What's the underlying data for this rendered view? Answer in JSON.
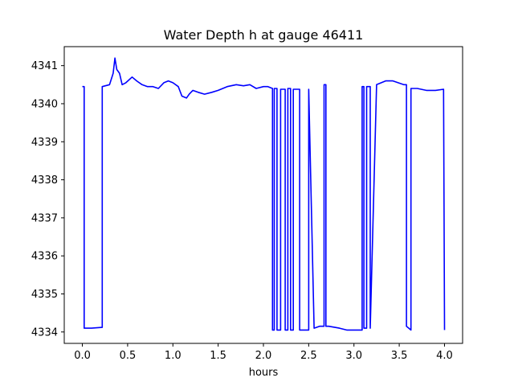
{
  "chart_data": {
    "type": "line",
    "title": "Water Depth h at gauge 46411",
    "xlabel": "hours",
    "ylabel": "",
    "xlim": [
      -0.2,
      4.2
    ],
    "ylim": [
      4333.7,
      4341.5
    ],
    "xticks": [
      0.0,
      0.5,
      1.0,
      1.5,
      2.0,
      2.5,
      3.0,
      3.5,
      4.0
    ],
    "xtick_labels": [
      "0.0",
      "0.5",
      "1.0",
      "1.5",
      "2.0",
      "2.5",
      "3.0",
      "3.5",
      "4.0"
    ],
    "yticks": [
      4334,
      4335,
      4336,
      4337,
      4338,
      4339,
      4340,
      4341
    ],
    "ytick_labels": [
      "4334",
      "4335",
      "4336",
      "4337",
      "4338",
      "4339",
      "4340",
      "4341"
    ],
    "grid": false,
    "legend": "none",
    "series": [
      {
        "color": "#0000ff",
        "x": [
          0.0,
          0.02,
          0.02,
          0.1,
          0.22,
          0.22,
          0.3,
          0.34,
          0.36,
          0.38,
          0.41,
          0.44,
          0.48,
          0.55,
          0.6,
          0.66,
          0.72,
          0.78,
          0.84,
          0.9,
          0.95,
          1.0,
          1.06,
          1.1,
          1.15,
          1.18,
          1.22,
          1.28,
          1.35,
          1.43,
          1.5,
          1.6,
          1.7,
          1.78,
          1.85,
          1.92,
          2.0,
          2.05,
          2.1,
          2.1,
          2.12,
          2.12,
          2.15,
          2.15,
          2.19,
          2.19,
          2.24,
          2.24,
          2.27,
          2.27,
          2.3,
          2.3,
          2.33,
          2.33,
          2.4,
          2.4,
          2.47,
          2.5,
          2.5,
          2.56,
          2.62,
          2.67,
          2.67,
          2.69,
          2.69,
          2.72,
          2.84,
          2.92,
          3.0,
          3.07,
          3.09,
          3.09,
          3.11,
          3.11,
          3.14,
          3.14,
          3.18,
          3.18,
          3.25,
          3.35,
          3.43,
          3.55,
          3.58,
          3.58,
          3.63,
          3.63,
          3.7,
          3.8,
          3.9,
          3.99,
          4.0
        ],
        "y": [
          4340.45,
          4340.45,
          4334.1,
          4334.1,
          4334.12,
          4340.45,
          4340.5,
          4340.8,
          4341.2,
          4340.9,
          4340.8,
          4340.5,
          4340.55,
          4340.7,
          4340.6,
          4340.5,
          4340.45,
          4340.45,
          4340.4,
          4340.55,
          4340.6,
          4340.55,
          4340.45,
          4340.2,
          4340.15,
          4340.25,
          4340.35,
          4340.3,
          4340.25,
          4340.3,
          4340.35,
          4340.45,
          4340.5,
          4340.47,
          4340.5,
          4340.4,
          4340.45,
          4340.45,
          4340.4,
          4334.05,
          4334.05,
          4340.4,
          4340.4,
          4334.05,
          4334.05,
          4340.38,
          4340.38,
          4334.05,
          4334.05,
          4340.4,
          4340.4,
          4334.05,
          4334.05,
          4340.38,
          4340.38,
          4334.05,
          4334.05,
          4334.05,
          4340.38,
          4334.1,
          4334.15,
          4334.15,
          4340.5,
          4340.5,
          4334.15,
          4334.15,
          4334.1,
          4334.05,
          4334.05,
          4334.05,
          4334.05,
          4340.45,
          4340.45,
          4334.1,
          4334.1,
          4340.45,
          4340.45,
          4334.1,
          4340.5,
          4340.6,
          4340.6,
          4340.5,
          4340.5,
          4334.15,
          4334.05,
          4340.4,
          4340.4,
          4340.35,
          4340.35,
          4340.38,
          4334.05
        ]
      }
    ]
  }
}
